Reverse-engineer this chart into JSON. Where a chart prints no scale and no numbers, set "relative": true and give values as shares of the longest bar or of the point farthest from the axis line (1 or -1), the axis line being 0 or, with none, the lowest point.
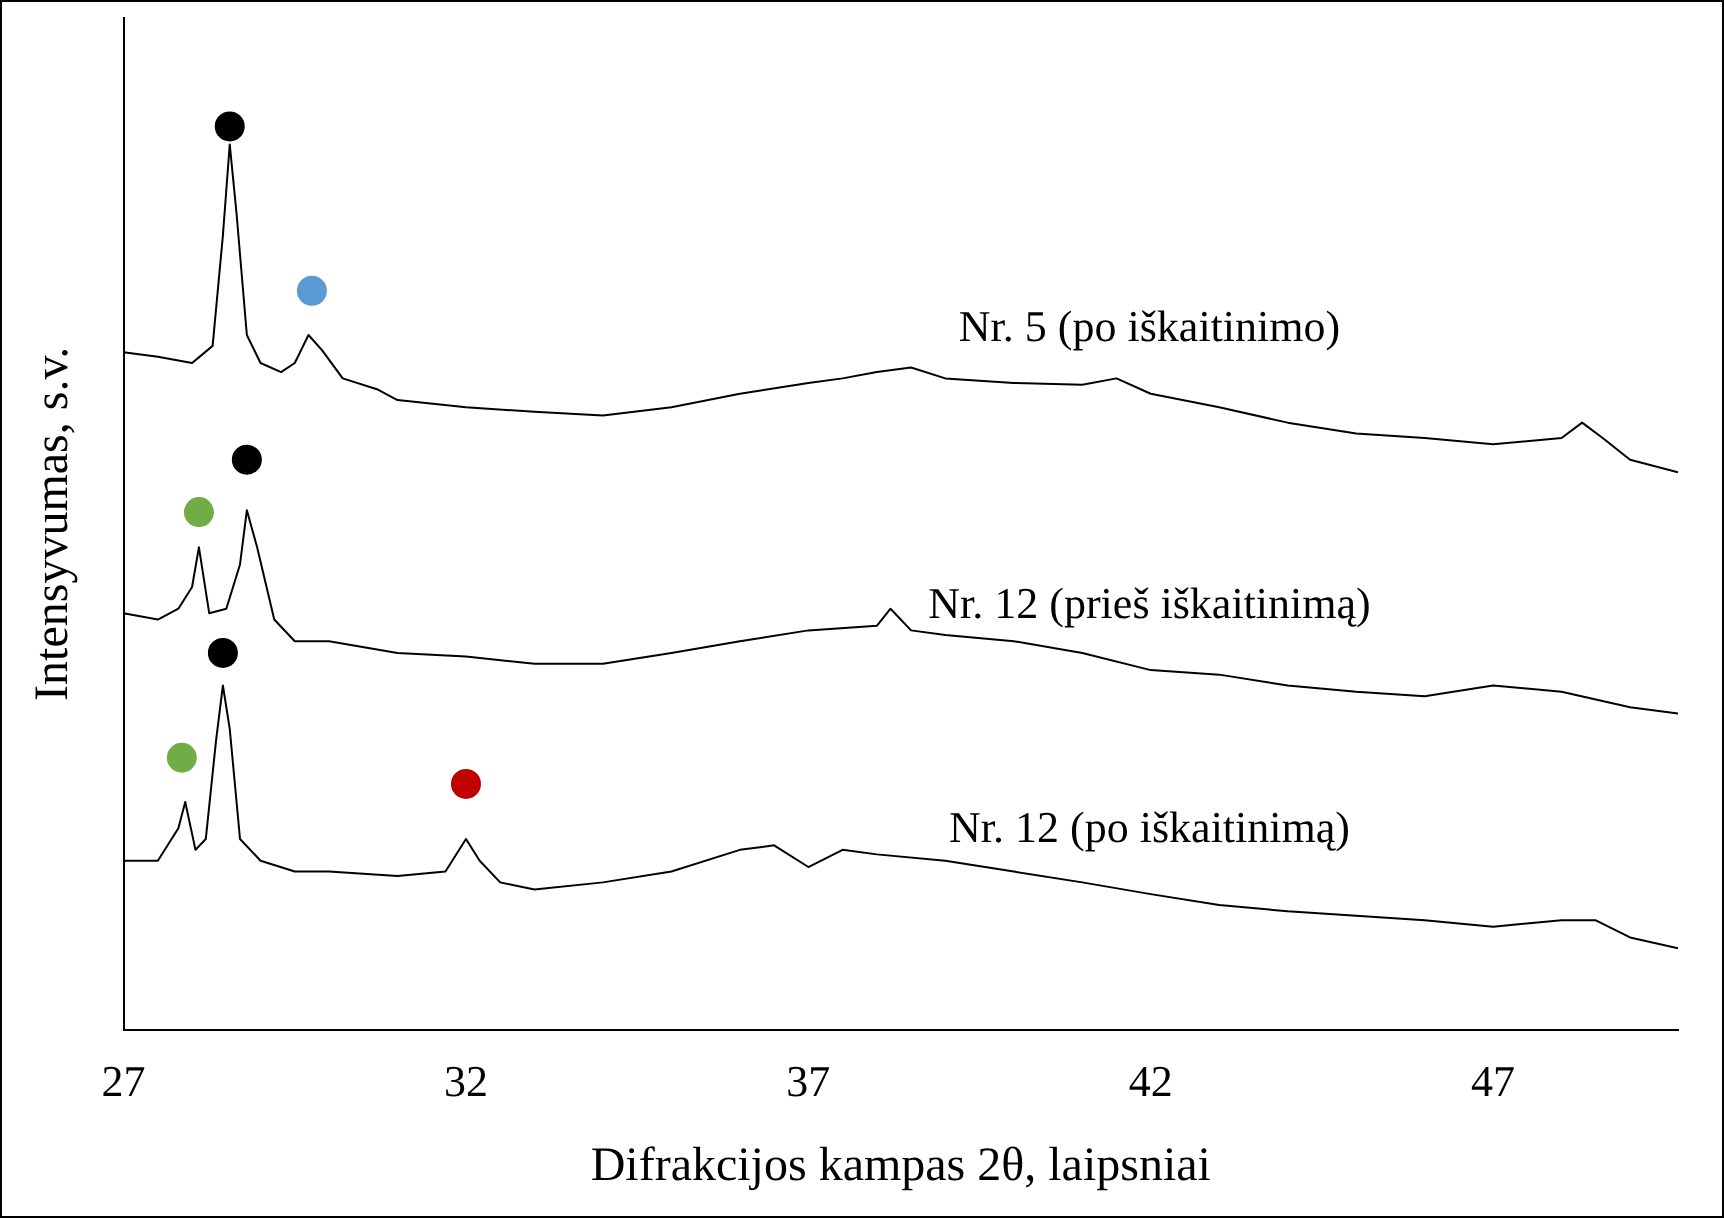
{
  "chart_data": {
    "type": "line",
    "relative": true,
    "xlabel": "Difrakcijos kampas 2θ, laipsniai",
    "ylabel": "Intensyvumas, s.v.",
    "xlim": [
      27,
      49.7
    ],
    "xticks": [
      27,
      32,
      37,
      42,
      47
    ],
    "grid": false,
    "legend": false,
    "line_style": "solid",
    "series": [
      {
        "name": "Nr. 5 (po iškaitinimo)",
        "color": "#000000",
        "x": [
          27,
          27.5,
          28,
          28.3,
          28.45,
          28.55,
          28.65,
          28.8,
          29,
          29.3,
          29.5,
          29.7,
          29.9,
          30.2,
          30.7,
          31,
          32,
          33,
          34,
          35,
          36,
          37,
          37.5,
          38,
          38.5,
          39,
          40,
          41,
          41.5,
          42,
          43,
          44,
          45,
          46,
          47,
          48,
          48.3,
          48.6,
          49,
          49.7
        ],
        "values": [
          0.75,
          0.745,
          0.738,
          0.757,
          0.879,
          0.98,
          0.903,
          0.769,
          0.738,
          0.728,
          0.738,
          0.769,
          0.752,
          0.721,
          0.709,
          0.697,
          0.689,
          0.684,
          0.68,
          0.689,
          0.704,
          0.716,
          0.721,
          0.728,
          0.733,
          0.721,
          0.716,
          0.714,
          0.721,
          0.704,
          0.689,
          0.672,
          0.66,
          0.655,
          0.648,
          0.655,
          0.672,
          0.655,
          0.631,
          0.617
        ]
      },
      {
        "name": "Nr. 12 (prieš iškaitinimą)",
        "color": "#000000",
        "x": [
          27,
          27.5,
          27.8,
          28,
          28.1,
          28.25,
          28.5,
          28.7,
          28.8,
          28.95,
          29.2,
          29.5,
          30,
          31,
          32,
          33,
          34,
          35,
          36,
          37,
          38,
          38.2,
          38.5,
          39,
          40,
          41,
          42,
          43,
          44,
          45,
          46,
          47,
          48,
          49,
          49.7
        ],
        "values": [
          0.461,
          0.454,
          0.466,
          0.49,
          0.534,
          0.461,
          0.466,
          0.515,
          0.575,
          0.534,
          0.454,
          0.43,
          0.43,
          0.417,
          0.413,
          0.405,
          0.405,
          0.417,
          0.43,
          0.442,
          0.447,
          0.466,
          0.442,
          0.437,
          0.43,
          0.417,
          0.398,
          0.393,
          0.381,
          0.374,
          0.369,
          0.381,
          0.374,
          0.357,
          0.35
        ]
      },
      {
        "name": "Nr. 12 (po iškaitinimą)",
        "color": "#000000",
        "x": [
          27,
          27.5,
          27.8,
          27.9,
          28.05,
          28.2,
          28.35,
          28.45,
          28.55,
          28.7,
          29,
          29.5,
          30,
          31,
          31.7,
          32,
          32.2,
          32.5,
          33,
          34,
          35,
          36,
          36.5,
          37,
          37.5,
          38,
          39,
          40,
          41,
          42,
          43,
          44,
          45,
          46,
          47,
          48,
          48.5,
          49,
          49.7
        ],
        "values": [
          0.187,
          0.187,
          0.223,
          0.252,
          0.199,
          0.211,
          0.32,
          0.381,
          0.333,
          0.211,
          0.187,
          0.175,
          0.175,
          0.17,
          0.175,
          0.211,
          0.187,
          0.163,
          0.155,
          0.163,
          0.175,
          0.199,
          0.204,
          0.18,
          0.199,
          0.194,
          0.187,
          0.175,
          0.163,
          0.15,
          0.138,
          0.131,
          0.126,
          0.121,
          0.114,
          0.121,
          0.121,
          0.102,
          0.09
        ]
      },
      {
        "type": "scatter",
        "marker": "circle",
        "x": [
          28.55,
          29.75,
          28.1,
          28.8,
          28.45,
          27.85,
          32
        ],
        "values": [
          1,
          0.818,
          0.573,
          0.631,
          0.417,
          0.301,
          0.272
        ],
        "colors": [
          "#000000",
          "#5b9bd5",
          "#70ad47",
          "#000000",
          "#000000",
          "#70ad47",
          "#c00000"
        ]
      }
    ]
  }
}
